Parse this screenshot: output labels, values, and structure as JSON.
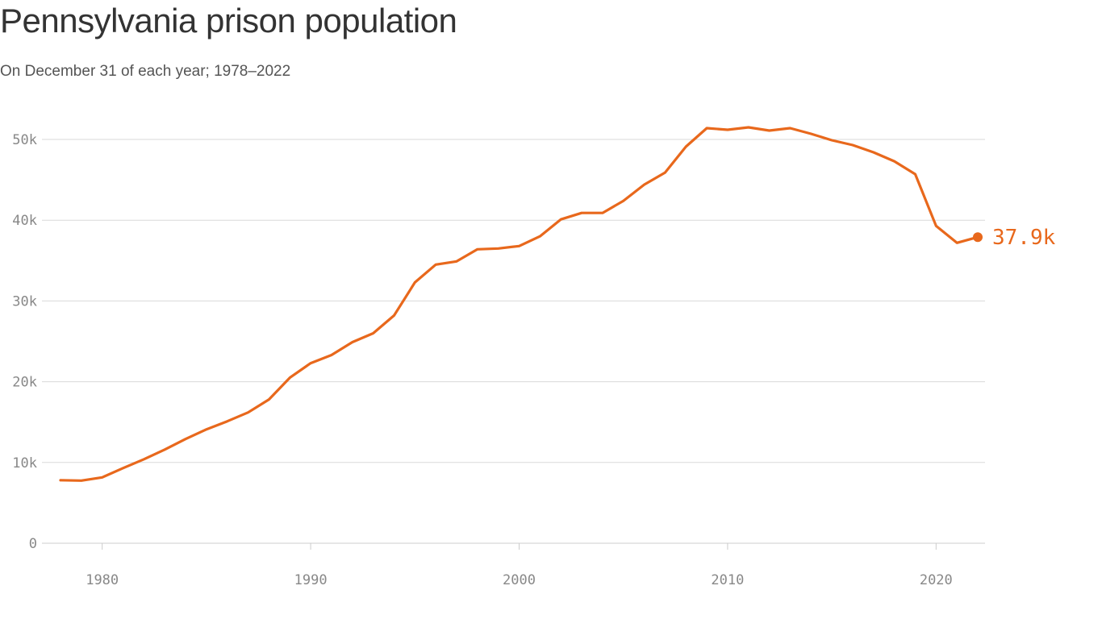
{
  "colors": {
    "line": "#e8681c",
    "grid": "#d9d9d9",
    "axis": "#cccccc",
    "text": "#888888"
  },
  "chart_data": {
    "type": "line",
    "title": "Pennsylvania prison population",
    "subtitle": "On December 31 of each year; 1978–2022",
    "xlabel": "",
    "ylabel": "",
    "xlim": [
      1978,
      2022
    ],
    "ylim": [
      0,
      50000
    ],
    "grid": true,
    "legend": "none",
    "x_ticks": [
      1980,
      1990,
      2000,
      2010,
      2020
    ],
    "y_ticks": [
      {
        "value": 0,
        "label": "0"
      },
      {
        "value": 10000,
        "label": "10k"
      },
      {
        "value": 20000,
        "label": "20k"
      },
      {
        "value": 30000,
        "label": "30k"
      },
      {
        "value": 40000,
        "label": "40k"
      },
      {
        "value": 50000,
        "label": "50k"
      }
    ],
    "end_label": "37.9k",
    "series": [
      {
        "x": [
          1978,
          1979,
          1980,
          1981,
          1982,
          1983,
          1984,
          1985,
          1986,
          1987,
          1988,
          1989,
          1990,
          1991,
          1992,
          1993,
          1994,
          1995,
          1996,
          1997,
          1998,
          1999,
          2000,
          2001,
          2002,
          2003,
          2004,
          2005,
          2006,
          2007,
          2008,
          2009,
          2010,
          2011,
          2012,
          2013,
          2014,
          2015,
          2016,
          2017,
          2018,
          2019,
          2020,
          2021,
          2022
        ],
        "values": [
          7800,
          7750,
          8150,
          9300,
          10400,
          11600,
          12900,
          14100,
          15100,
          16200,
          17800,
          20500,
          22300,
          23300,
          24900,
          26000,
          28200,
          32300,
          34500,
          34900,
          36400,
          36500,
          36800,
          38000,
          40100,
          40900,
          40900,
          42400,
          44400,
          45900,
          49100,
          51400,
          51200,
          51500,
          51100,
          51400,
          50700,
          49900,
          49300,
          48400,
          47300,
          45700,
          39300,
          37200,
          37900
        ]
      }
    ]
  }
}
